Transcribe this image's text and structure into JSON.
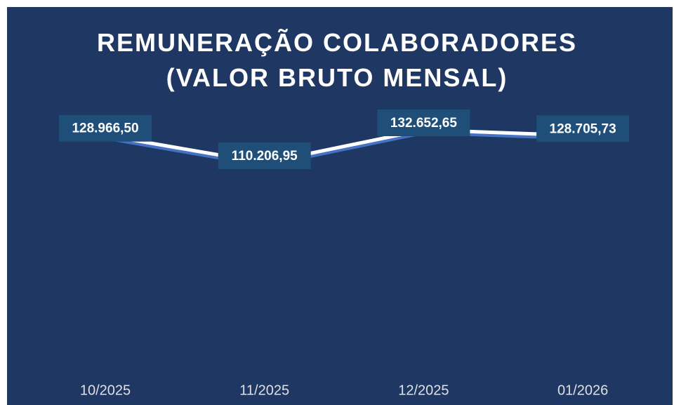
{
  "chart_data": {
    "type": "line",
    "title": "REMUNERAÇÃO COLABORADORES (VALOR BRUTO MENSAL)",
    "categories": [
      "10/2025",
      "11/2025",
      "12/2025",
      "01/2026"
    ],
    "series": [
      {
        "color": "#ffffff",
        "values": [
          128966.5,
          110206.95,
          132652.65,
          128705.73
        ],
        "value_labels": [
          "128.966,50",
          "110.206,95",
          "132.652,65",
          "128.705,73"
        ]
      }
    ]
  }
}
